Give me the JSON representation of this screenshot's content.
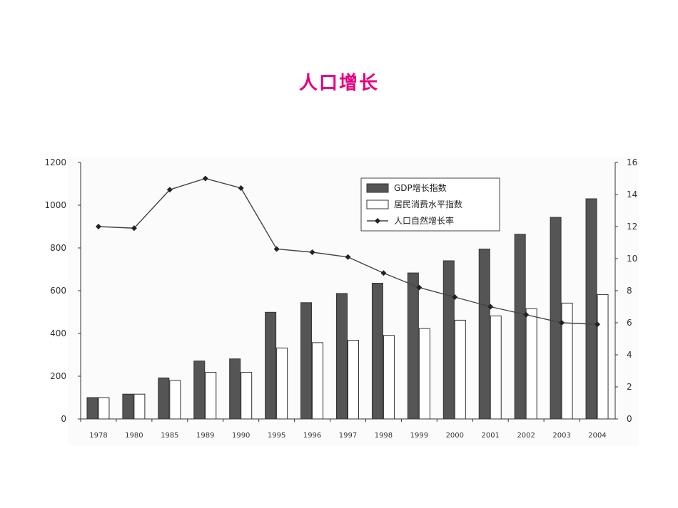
{
  "page": {
    "title": "人口增长",
    "title_color": "#e6007e"
  },
  "chart_data": {
    "type": "bar",
    "categories": [
      "1978",
      "1980",
      "1985",
      "1989",
      "1990",
      "1995",
      "1996",
      "1997",
      "1998",
      "1999",
      "2000",
      "2001",
      "2002",
      "2003",
      "2004"
    ],
    "series": [
      {
        "name": "GDP增长指数",
        "kind": "bar",
        "axis": "left",
        "color": "#555555",
        "values": [
          100,
          116,
          192,
          271,
          281,
          499,
          544,
          587,
          635,
          683,
          740,
          795,
          864,
          943,
          1030
        ]
      },
      {
        "name": "居民消费水平指数",
        "kind": "bar",
        "axis": "left",
        "color": "#ffffff",
        "values": [
          100,
          116,
          180,
          218,
          218,
          332,
          357,
          368,
          391,
          423,
          462,
          482,
          516,
          542,
          582
        ]
      },
      {
        "name": "人口自然增长率",
        "kind": "line",
        "axis": "right",
        "color": "#444444",
        "values": [
          12.0,
          11.9,
          14.3,
          15.0,
          14.4,
          10.6,
          10.4,
          10.1,
          9.1,
          8.2,
          7.6,
          7.0,
          6.5,
          6.0,
          5.9
        ]
      }
    ],
    "y_left": {
      "lim": [
        0,
        1200
      ],
      "ticks": [
        "0",
        "200",
        "400",
        "600",
        "800",
        "1000",
        "1200"
      ]
    },
    "y_right": {
      "lim": [
        0,
        16
      ],
      "ticks": [
        "0",
        "2",
        "4",
        "6",
        "8",
        "10",
        "12",
        "14",
        "16"
      ]
    },
    "legend_position": "top-right",
    "grid": false
  }
}
